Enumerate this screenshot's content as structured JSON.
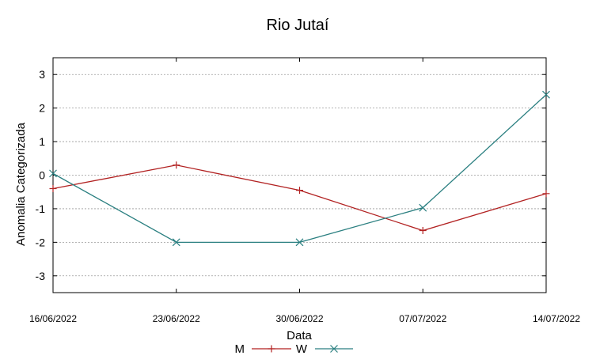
{
  "chart_data": {
    "type": "line",
    "title": "Rio Jutaí",
    "xlabel": "Data",
    "ylabel": "Anomalia Categorizada",
    "categories": [
      "16/06/2022",
      "23/06/2022",
      "30/06/2022",
      "07/07/2022",
      "14/07/2022"
    ],
    "yticks": [
      "3",
      "2",
      "1",
      "0",
      "-1",
      "-2",
      "-3"
    ],
    "ylim": [
      -3.5,
      3.5
    ],
    "grid": true,
    "legend_position": "bottom-center",
    "series": [
      {
        "name": "M",
        "values": [
          -0.4,
          0.3,
          -0.45,
          -1.65,
          -0.55
        ],
        "color": "#b22222",
        "marker": "plus"
      },
      {
        "name": "W",
        "values": [
          0.05,
          -2.0,
          -2.0,
          -0.97,
          2.4
        ],
        "color": "#2a7f80",
        "marker": "cross"
      }
    ]
  }
}
